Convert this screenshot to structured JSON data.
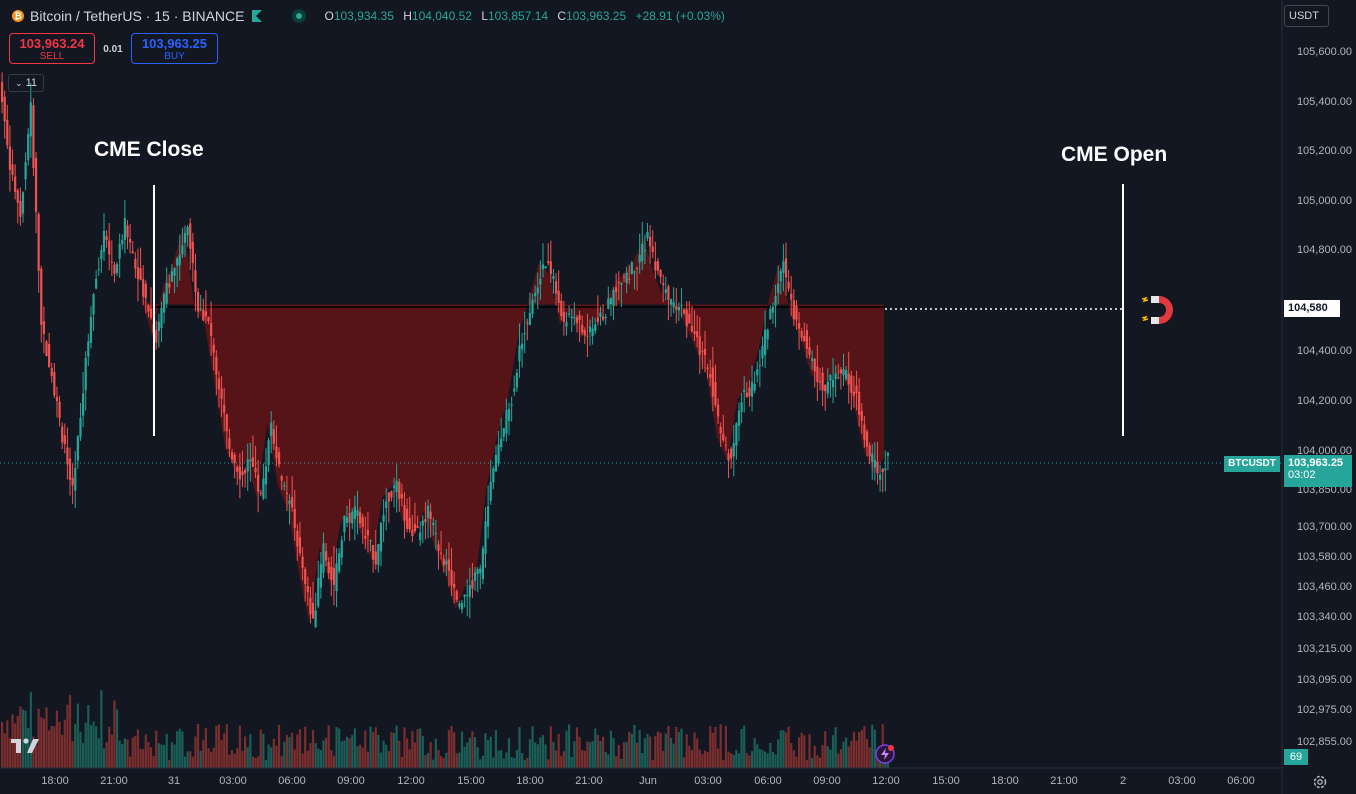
{
  "header": {
    "coin_glyph": "₿",
    "symbol_title": "Bitcoin / TetherUS · 15 · BINANCE",
    "ohlc": [
      {
        "k": "O",
        "v": "103,934.35"
      },
      {
        "k": "H",
        "v": "104,040.52"
      },
      {
        "k": "L",
        "v": "103,857.14"
      },
      {
        "k": "C",
        "v": "103,963.25"
      }
    ],
    "change": "+28.91 (+0.03%)"
  },
  "trade": {
    "sell_price": "103,963.24",
    "sell_label": "SELL",
    "spread": "0.01",
    "buy_price": "103,963.25",
    "buy_label": "BUY",
    "indicator_count": "11"
  },
  "currency_select": "USDT",
  "annotations": {
    "cme_close": "CME Close",
    "cme_open": "CME Open"
  },
  "price_axis": {
    "ticks": [
      "105,600.00",
      "105,400.00",
      "105,200.00",
      "105,000.00",
      "104,800.00",
      "104,400.00",
      "104,200.00",
      "104,000.00",
      "103,850.00",
      "103,700.00",
      "103,580.00",
      "103,460.00",
      "103,340.00",
      "103,215.00",
      "103,095.00",
      "102,975.00",
      "102,855.00"
    ],
    "level_label": "104,580",
    "symbol_tag": "BTCUSDT",
    "last_price": "103,963.25",
    "countdown": "03:02",
    "volume_label": "69"
  },
  "time_axis": [
    "18:00",
    "21:00",
    "31",
    "03:00",
    "06:00",
    "09:00",
    "12:00",
    "15:00",
    "18:00",
    "21:00",
    "Jun",
    "03:00",
    "06:00",
    "09:00",
    "12:00",
    "15:00",
    "18:00",
    "21:00",
    "2",
    "03:00",
    "06:00"
  ],
  "colors": {
    "up": "#26a69a",
    "down": "#ef5350",
    "gap_fill": "#5a1418",
    "background": "#131722"
  },
  "chart_data": {
    "type": "candlestick",
    "symbol": "BTCUSDT",
    "interval_minutes": 15,
    "gap_level": 104580,
    "last_price": 103963.25,
    "closes": [
      105150,
      104950,
      105380,
      104500,
      104300,
      104050,
      103820,
      104250,
      104650,
      104850,
      104700,
      104900,
      104750,
      104600,
      104450,
      104650,
      104750,
      104900,
      104580,
      104500,
      104250,
      104000,
      103900,
      103950,
      103800,
      104100,
      103850,
      103750,
      103500,
      103300,
      103600,
      103450,
      103700,
      103750,
      103650,
      103550,
      103800,
      103850,
      103700,
      103650,
      103750,
      103600,
      103500,
      103350,
      103450,
      103500,
      103850,
      104050,
      104200,
      104450,
      104600,
      104750,
      104700,
      104500,
      104550,
      104450,
      104500,
      104550,
      104650,
      104700,
      104750,
      104850,
      104700,
      104600,
      104580,
      104500,
      104400,
      104300,
      104050,
      103950,
      104200,
      104250,
      104400,
      104600,
      104750,
      104550,
      104450,
      104300,
      104250,
      104300,
      104300,
      104200,
      104000,
      103900,
      103963
    ]
  }
}
